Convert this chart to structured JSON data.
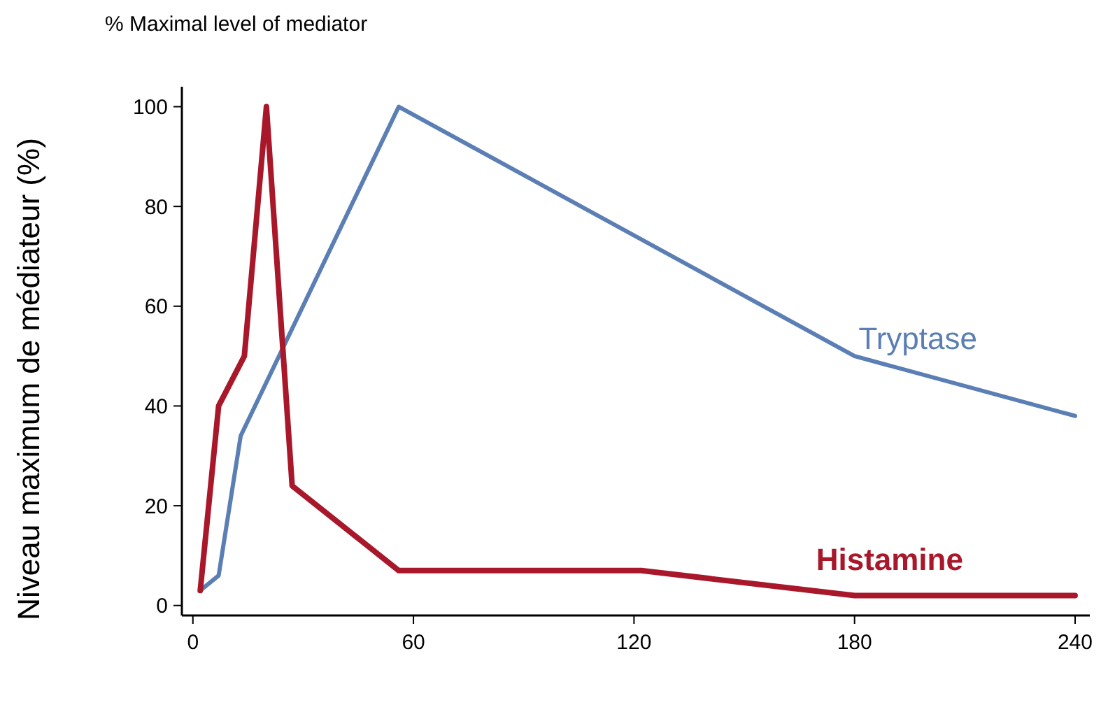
{
  "chart_data": {
    "type": "line",
    "title": "% Maximal level of mediator",
    "ylabel": "Niveau maximum de médiateur (%)",
    "xlim": [
      -3,
      244
    ],
    "xticks": [
      0,
      60,
      120,
      180,
      240
    ],
    "ylim": [
      -2,
      104
    ],
    "yticks": [
      0,
      20,
      40,
      60,
      80,
      100
    ],
    "grid": false,
    "marker": "none",
    "line_style": "solid",
    "series": [
      {
        "name": "Tryptase",
        "color": "#5b7fb5",
        "x": [
          2,
          7,
          13,
          56,
          180,
          240
        ],
        "values": [
          3,
          6,
          34,
          100,
          50,
          38
        ]
      },
      {
        "name": "Histamine",
        "color": "#a8182a",
        "x": [
          2,
          7,
          14,
          20,
          27,
          56,
          122,
          180,
          240
        ],
        "values": [
          3,
          40,
          50,
          100,
          24,
          7,
          7,
          2,
          2
        ]
      }
    ]
  }
}
